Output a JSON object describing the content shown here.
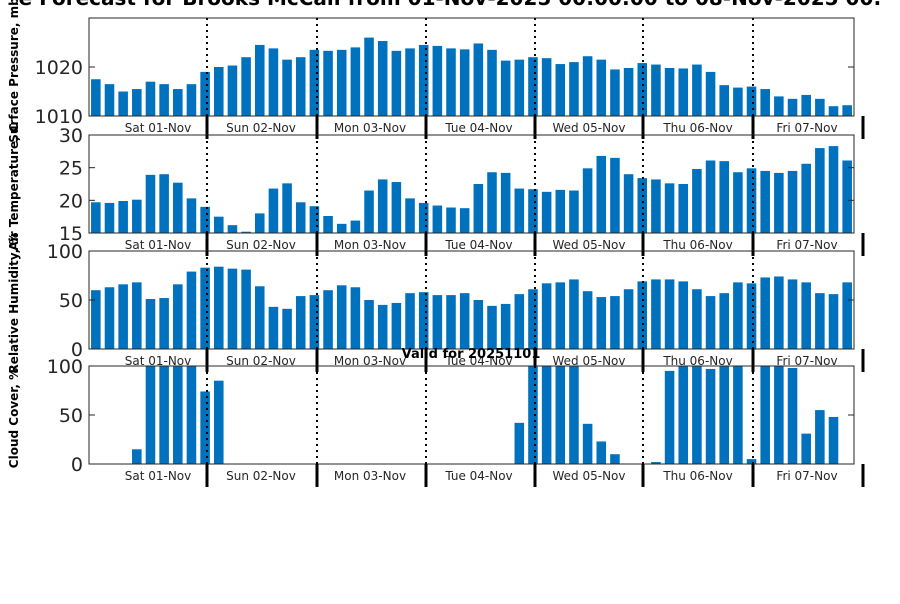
{
  "title": "e Forecast for Brooks McCall from 01-Nov-2025 00:00:00 to 08-Nov-2025 00:",
  "valid_label": "Valid for 20251101",
  "bar_color": "#0072bd",
  "day_labels": [
    "Sat 01-Nov",
    "Sun 02-Nov",
    "Mon 03-Nov",
    "Tue 04-Nov",
    "Wed 05-Nov",
    "Thu 06-Nov",
    "Fri 07-Nov"
  ],
  "chart_data": [
    {
      "type": "bar",
      "ylabel": "Surface Pressure, mb",
      "ylim": [
        1010,
        1030
      ],
      "yticks": [
        1010,
        1020
      ],
      "values": [
        1017.5,
        1016.5,
        1015,
        1015.5,
        1017,
        1016.5,
        1015.5,
        1016.5,
        1019,
        1020,
        1020.3,
        1022,
        1024.5,
        1023.8,
        1021.5,
        1022,
        1023.5,
        1023.3,
        1023.5,
        1024,
        1026,
        1025.3,
        1023.3,
        1023.8,
        1024.5,
        1024.3,
        1023.8,
        1023.6,
        1024.8,
        1023.5,
        1021.3,
        1021.5,
        1022,
        1021.8,
        1020.6,
        1021,
        1022.2,
        1021.5,
        1019.5,
        1019.8,
        1020.8,
        1020.5,
        1019.8,
        1019.7,
        1020.5,
        1019,
        1016.3,
        1015.8,
        1016,
        1015.5,
        1014,
        1013.5,
        1014.3,
        1013.5,
        1012,
        1012.2
      ]
    },
    {
      "type": "bar",
      "ylabel": "Air Temperature, C",
      "ylim": [
        15,
        30
      ],
      "yticks": [
        15,
        20,
        25,
        30
      ],
      "values": [
        19.7,
        19.6,
        19.9,
        20.1,
        23.9,
        24,
        22.7,
        20.3,
        19,
        17.5,
        16.2,
        15.2,
        18,
        21.8,
        22.6,
        19.7,
        19.1,
        17.6,
        16.4,
        16.9,
        21.5,
        23.2,
        22.8,
        20.3,
        19.6,
        19.2,
        18.9,
        18.8,
        22.5,
        24.3,
        24.2,
        21.8,
        21.7,
        21.3,
        21.6,
        21.5,
        24.9,
        26.8,
        26.5,
        24,
        23.4,
        23.2,
        22.6,
        22.5,
        24.8,
        26.1,
        26,
        24.3,
        24.9,
        24.5,
        24.2,
        24.5,
        25.6,
        28,
        28.3,
        26.1
      ]
    },
    {
      "type": "bar",
      "ylabel": "Relative Humidity, %",
      "ylim": [
        0,
        100
      ],
      "yticks": [
        0,
        50,
        100
      ],
      "values": [
        60,
        63,
        66,
        68,
        51,
        52,
        66,
        79,
        83,
        84,
        82,
        81,
        64,
        43,
        41,
        54,
        55,
        60,
        65,
        63,
        50,
        45,
        47,
        57,
        58,
        55,
        55,
        57,
        50,
        44,
        46,
        56,
        61,
        67,
        68,
        71,
        59,
        53,
        54,
        61,
        69,
        71,
        71,
        69,
        61,
        54,
        57,
        68,
        67,
        73,
        74,
        71,
        68,
        57,
        56,
        68
      ]
    },
    {
      "type": "bar",
      "ylabel": "Cloud Cover, %",
      "ylim": [
        0,
        100
      ],
      "yticks": [
        0,
        50,
        100
      ],
      "values": [
        0,
        0,
        0,
        15,
        100,
        100,
        100,
        100,
        74,
        85,
        0,
        0,
        0,
        0,
        0,
        0,
        0,
        0,
        0,
        0,
        0,
        0,
        0,
        0,
        0,
        0,
        0,
        0,
        0,
        0,
        0,
        42,
        100,
        100,
        100,
        100,
        41,
        23,
        10,
        0,
        0,
        2,
        95,
        100,
        100,
        97,
        100,
        100,
        5,
        100,
        100,
        98,
        31,
        55,
        48,
        0
      ]
    }
  ]
}
